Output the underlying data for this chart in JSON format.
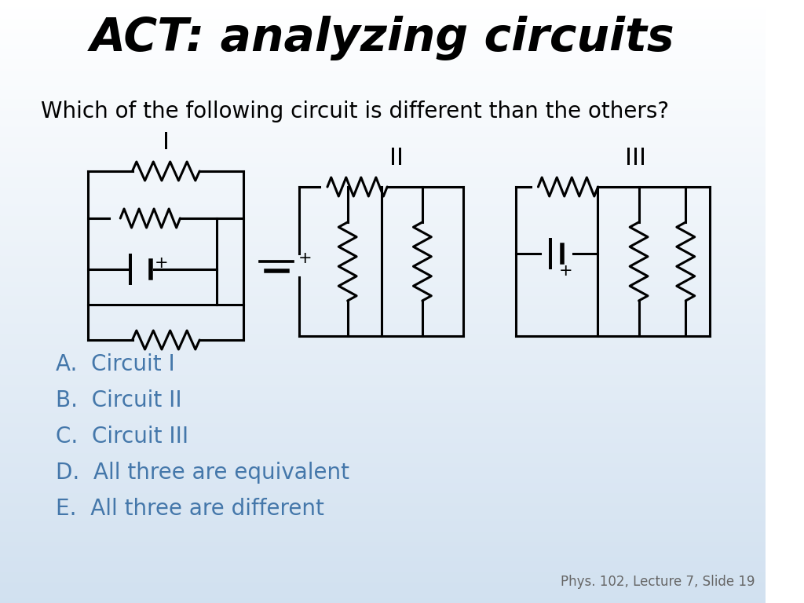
{
  "title": "ACT: analyzing circuits",
  "question": "Which of the following circuit is different than the others?",
  "circuit_labels": [
    "I",
    "II",
    "III"
  ],
  "answers": [
    "A.  Circuit I",
    "B.  Circuit II",
    "C.  Circuit III",
    "D.  All three are equivalent",
    "E.  All three are different"
  ],
  "footnote": "Phys. 102, Lecture 7, Slide 19",
  "answer_color": "#4477aa",
  "line_color": "#000000",
  "line_width": 2.2
}
